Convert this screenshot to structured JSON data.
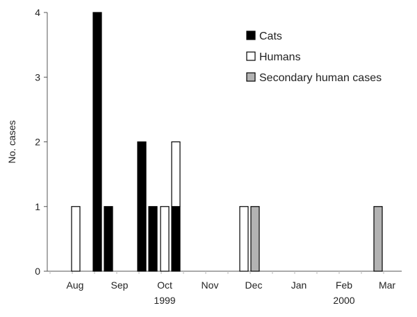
{
  "chart_data": {
    "type": "bar",
    "stacked": true,
    "ylabel": "No. cases",
    "ylim": [
      0,
      4
    ],
    "yticks": [
      0,
      1,
      2,
      3,
      4
    ],
    "x_labels": [
      {
        "label": "Aug",
        "period": "Aug 1999"
      },
      {
        "label": "Sep",
        "period": "Sep 1999"
      },
      {
        "label": "Oct",
        "period": "Oct 1999"
      },
      {
        "label": "Nov",
        "period": "Nov 1999"
      },
      {
        "label": "Dec",
        "period": "Dec 1999"
      },
      {
        "label": "Jan",
        "period": "Jan 2000"
      },
      {
        "label": "Feb",
        "period": "Feb 2000"
      },
      {
        "label": "Mar",
        "period": "Mar 2000"
      }
    ],
    "year_labels": [
      {
        "label": "1999",
        "under": "Oct"
      },
      {
        "label": "2000",
        "under": "Feb"
      }
    ],
    "legend_position": "top-right",
    "legend": [
      {
        "key": "cats",
        "label": "Cats",
        "color": "#000000"
      },
      {
        "key": "humans",
        "label": "Humans",
        "color": "#ffffff"
      },
      {
        "key": "secondary",
        "label": "Secondary human cases",
        "color": "#b3b3b3"
      }
    ],
    "bars": [
      {
        "period": "Aug 1999",
        "series": "humans",
        "value": 1
      },
      {
        "period": "Aug 1999",
        "series": "cats",
        "value": 4
      },
      {
        "period": "Sep 1999",
        "series": "cats",
        "value": 1
      },
      {
        "period": "Sep 1999",
        "series": "cats",
        "value": 2
      },
      {
        "period": "Sep 1999",
        "series": "cats",
        "value": 1
      },
      {
        "period": "Oct 1999",
        "series": "humans",
        "value": 1
      },
      {
        "period": "Oct 1999",
        "series": "cats",
        "value": 1,
        "stack": [
          {
            "series": "cats",
            "value": 1
          },
          {
            "series": "humans",
            "value": 1
          }
        ]
      },
      {
        "period": "Nov 1999",
        "series": "humans",
        "value": 1
      },
      {
        "period": "Nov 1999",
        "series": "secondary",
        "value": 1
      },
      {
        "period": "Feb 2000",
        "series": "secondary",
        "value": 1
      }
    ]
  }
}
